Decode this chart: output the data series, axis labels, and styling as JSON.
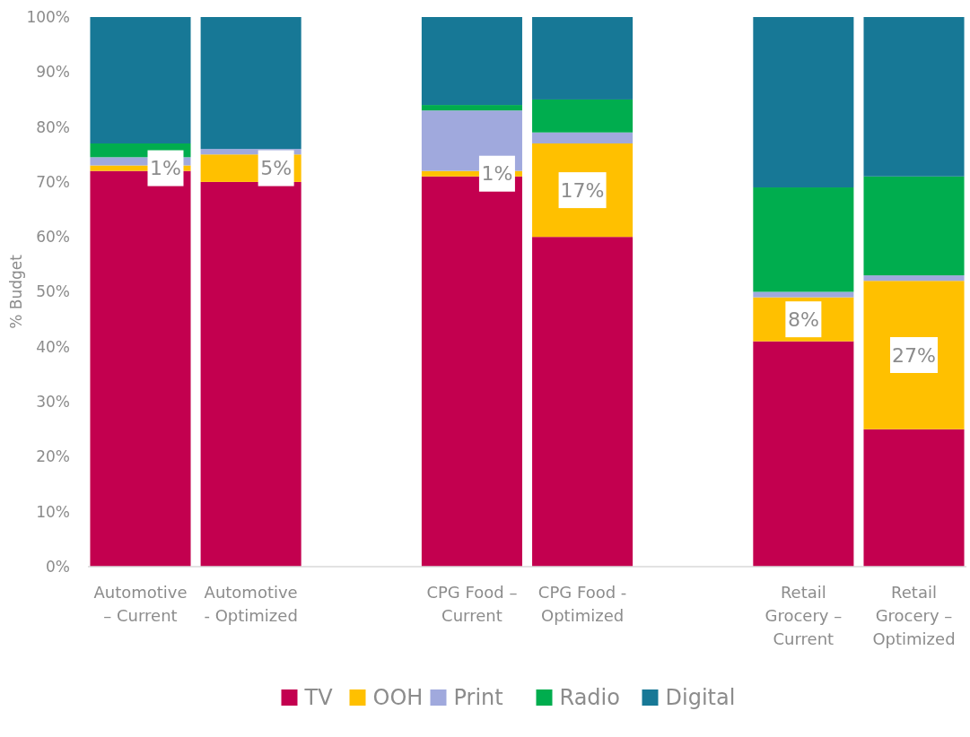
{
  "chart_data": {
    "type": "bar",
    "stacked": true,
    "ylabel": "% Budget",
    "categories": [
      "Automotive – Current",
      "Automotive - Optimized",
      null,
      "CPG Food – Current",
      "CPG Food - Optimized",
      null,
      "Retail Grocery – Current",
      "Retail Grocery – Optimized"
    ],
    "series": [
      {
        "name": "TV",
        "color": "#c3004f",
        "values": [
          72,
          70,
          null,
          71,
          60,
          null,
          41,
          25
        ]
      },
      {
        "name": "OOH",
        "color": "#ffc000",
        "values": [
          1,
          5,
          null,
          1,
          17,
          null,
          8,
          27
        ],
        "value_labels": [
          "1%",
          "5%",
          null,
          "1%",
          "17%",
          null,
          "8%",
          "27%"
        ]
      },
      {
        "name": "Print",
        "color": "#a0a9dd",
        "values": [
          1.5,
          1,
          null,
          11,
          2,
          null,
          1,
          1
        ]
      },
      {
        "name": "Radio",
        "color": "#00ad4e",
        "values": [
          2.5,
          0,
          null,
          1,
          6,
          null,
          19,
          18
        ]
      },
      {
        "name": "Digital",
        "color": "#177896",
        "values": [
          23,
          24,
          null,
          16,
          15,
          null,
          31,
          29
        ]
      }
    ],
    "ylim": [
      0,
      100
    ],
    "yticks": [
      {
        "value": 0,
        "label": "0%"
      },
      {
        "value": 10,
        "label": "10%"
      },
      {
        "value": 20,
        "label": "20%"
      },
      {
        "value": 30,
        "label": "30%"
      },
      {
        "value": 40,
        "label": "40%"
      },
      {
        "value": 50,
        "label": "50%"
      },
      {
        "value": 60,
        "label": "60%"
      },
      {
        "value": 70,
        "label": "70%"
      },
      {
        "value": 80,
        "label": "80%"
      },
      {
        "value": 90,
        "label": "90%"
      },
      {
        "value": 100,
        "label": "100%"
      }
    ],
    "grid": false,
    "legend": "bottom"
  }
}
